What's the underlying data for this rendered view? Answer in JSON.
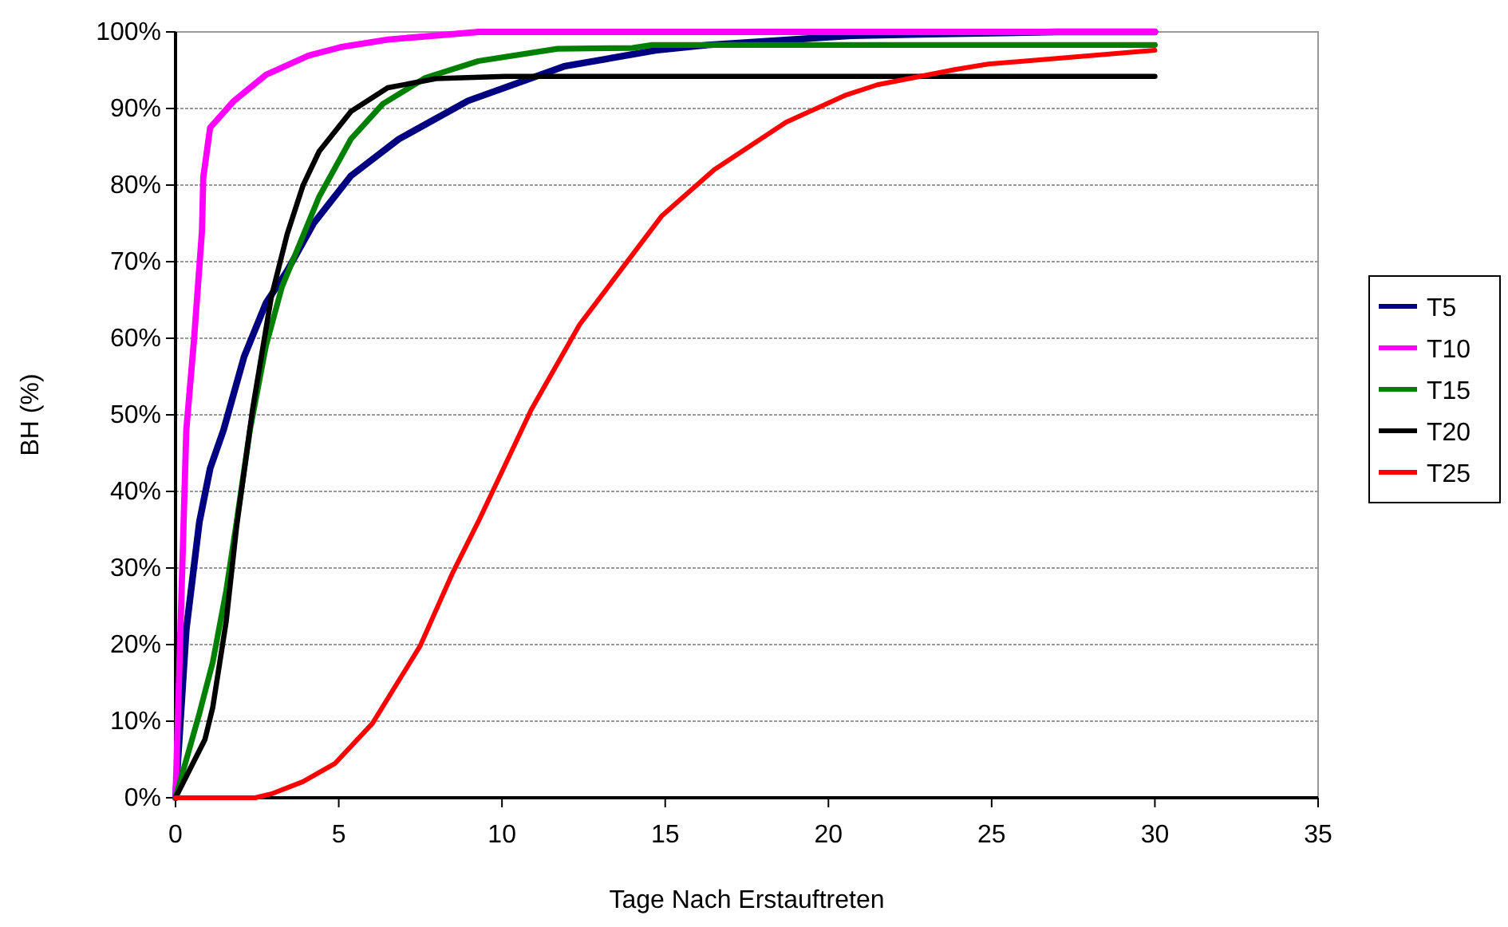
{
  "chart_data": {
    "type": "line",
    "xlabel": "Tage Nach Erstauftreten",
    "ylabel": "BH (%)",
    "xlim": [
      0,
      35
    ],
    "xticks": [
      0,
      5,
      10,
      15,
      20,
      25,
      30,
      35
    ],
    "ylim": [
      0,
      100
    ],
    "yticks": [
      {
        "value": 0,
        "label": "0%"
      },
      {
        "value": 10,
        "label": "10%"
      },
      {
        "value": 20,
        "label": "20%"
      },
      {
        "value": 30,
        "label": "30%"
      },
      {
        "value": 40,
        "label": "40%"
      },
      {
        "value": 50,
        "label": "50%"
      },
      {
        "value": 60,
        "label": "60%"
      },
      {
        "value": 70,
        "label": "70%"
      },
      {
        "value": 80,
        "label": "80%"
      },
      {
        "value": 90,
        "label": "90%"
      },
      {
        "value": 100,
        "label": "100%"
      }
    ],
    "grid": "y",
    "legend": "right",
    "marker": "none",
    "line_style": "solid",
    "series": [
      {
        "name": "T5",
        "color": "#000080",
        "x": [
          0,
          0.33,
          0.73,
          1.06,
          1.47,
          2.1,
          2.77,
          3.42,
          4.23,
          5.37,
          6.84,
          8.96,
          11.9,
          14.7,
          16.3,
          20.7,
          23.1,
          27,
          30
        ],
        "values": [
          0,
          22,
          36,
          43,
          48,
          57.6,
          64.6,
          68.8,
          75,
          81.2,
          86,
          91,
          95.5,
          97.6,
          98.3,
          99.5,
          99.7,
          100,
          100
        ]
      },
      {
        "name": "T10",
        "color": "#ff00ff",
        "x": [
          0,
          0.33,
          0.57,
          0.81,
          0.85,
          1.06,
          1.79,
          2.77,
          4.07,
          5.05,
          6.5,
          9.3,
          30
        ],
        "values": [
          0,
          48,
          60,
          74,
          81,
          87.5,
          91,
          94.4,
          96.9,
          98,
          99,
          100,
          100
        ]
      },
      {
        "name": "T15",
        "color": "#008000",
        "x": [
          0,
          0.73,
          1.14,
          1.55,
          1.87,
          2.28,
          2.77,
          3.26,
          4.4,
          5.37,
          6.35,
          7.65,
          9.28,
          11.7,
          14,
          14.6,
          30
        ],
        "values": [
          0,
          11,
          17.7,
          27,
          36,
          48,
          59,
          66.7,
          78.5,
          86,
          90.6,
          94,
          96.2,
          97.8,
          97.9,
          98.3,
          98.3
        ]
      },
      {
        "name": "T20",
        "color": "#000000",
        "x": [
          0,
          0.9,
          1.14,
          1.55,
          1.87,
          2.36,
          2.93,
          3.42,
          3.9,
          4.4,
          5.37,
          6.5,
          7.98,
          10.1,
          30
        ],
        "values": [
          0,
          7.6,
          11.8,
          23,
          35.4,
          50.7,
          65.3,
          73.6,
          79.9,
          84.4,
          89.6,
          92.7,
          93.9,
          94.2,
          94.2
        ]
      },
      {
        "name": "T25",
        "color": "#ff0000",
        "x": [
          0,
          2.44,
          2.93,
          3.9,
          4.89,
          6.03,
          7.49,
          8.47,
          9.28,
          10.9,
          12.38,
          14.9,
          16.5,
          18.7,
          20.5,
          21.5,
          23.9,
          24.9,
          30
        ],
        "values": [
          0,
          0,
          0.5,
          2.1,
          4.5,
          9.7,
          19.8,
          29.2,
          36.1,
          50.7,
          61.8,
          76,
          82,
          88.2,
          91.7,
          93.1,
          95.1,
          95.8,
          97.6
        ]
      }
    ]
  }
}
